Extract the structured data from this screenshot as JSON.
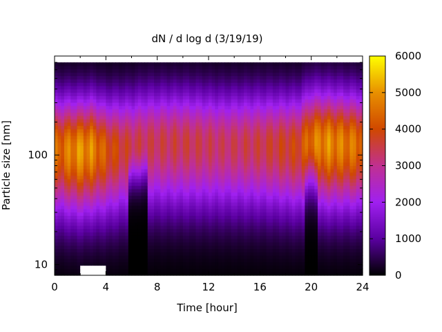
{
  "chart_data": {
    "type": "heatmap",
    "title": "dN / d log d (3/19/19)",
    "xlabel": "Time [hour]",
    "ylabel": "Particle size [nm]",
    "xlim": [
      0,
      24
    ],
    "ylim": [
      8,
      800
    ],
    "yscale": "log",
    "x_ticks": [
      0,
      4,
      8,
      12,
      16,
      20,
      24
    ],
    "x_tick_labels": [
      "0",
      "4",
      "8",
      "12",
      "16",
      "20",
      "24"
    ],
    "y_ticks": [
      10,
      100
    ],
    "y_tick_labels": [
      "10",
      "100"
    ],
    "colorbar": {
      "range": [
        0,
        6000
      ],
      "ticks": [
        0,
        1000,
        2000,
        3000,
        4000,
        5000,
        6000
      ],
      "tick_labels": [
        "0",
        "1000",
        "2000",
        "3000",
        "4000",
        "5000",
        "6000"
      ],
      "colormap": [
        "#000000",
        "#5a00a0",
        "#a020f0",
        "#c03090",
        "#d04800",
        "#e89000",
        "#ffff00"
      ]
    },
    "grid": false,
    "peak_value": 5500,
    "peak_band_nm": [
      60,
      230
    ],
    "gap": {
      "x": [
        2,
        4
      ],
      "y_below_nm": 10,
      "color": "#ffffff"
    },
    "times_hour": [
      0,
      2,
      3,
      4,
      6,
      7,
      10,
      13,
      16,
      19,
      20,
      21,
      24
    ],
    "peak_intensity": [
      4700,
      5400,
      5200,
      4500,
      3800,
      3700,
      3800,
      3600,
      3800,
      4200,
      5000,
      5300,
      4900
    ],
    "peak_center_nm": [
      115,
      110,
      115,
      110,
      120,
      130,
      130,
      125,
      125,
      120,
      135,
      130,
      125
    ]
  }
}
